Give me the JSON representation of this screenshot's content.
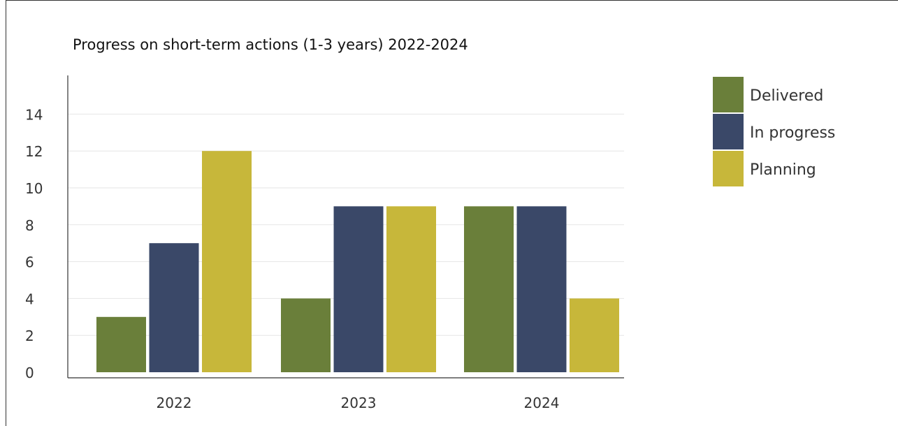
{
  "chart_data": {
    "type": "bar",
    "title": "Progress on short-term actions (1-3 years) 2022-2024",
    "xlabel": "",
    "ylabel": "",
    "categories": [
      "2022",
      "2023",
      "2024"
    ],
    "series": [
      {
        "name": "Delivered",
        "color": "#6a7f3a",
        "values": [
          3,
          4,
          9
        ]
      },
      {
        "name": "In progress",
        "color": "#3a4868",
        "values": [
          7,
          9,
          9
        ]
      },
      {
        "name": "Planning",
        "color": "#c7b73a",
        "values": [
          12,
          9,
          4
        ]
      }
    ],
    "ylim": [
      0,
      15
    ],
    "yticks": [
      "0",
      "2",
      "4",
      "6",
      "8",
      "10",
      "12",
      "14"
    ],
    "grid": false,
    "legend_position": "right"
  }
}
